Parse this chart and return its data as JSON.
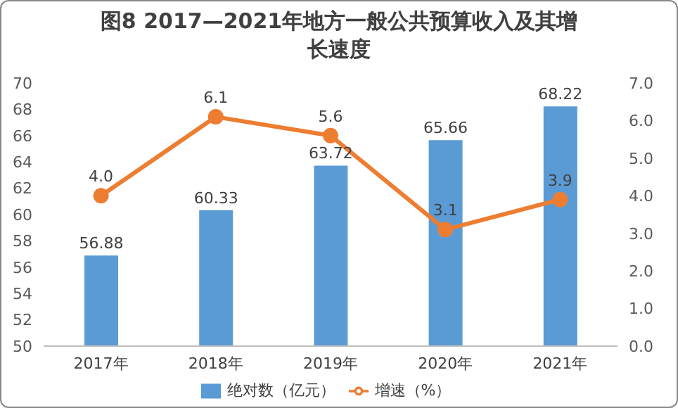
{
  "chart_data": {
    "type": "bar",
    "title": "图8 2017—2021年地方一般公共预算收入及其增长速度",
    "categories": [
      "2017年",
      "2018年",
      "2019年",
      "2020年",
      "2021年"
    ],
    "series": [
      {
        "name": "绝对数（亿元）",
        "color": "#5b9bd5",
        "values": [
          56.88,
          60.33,
          63.72,
          65.66,
          68.22
        ],
        "value_labels": [
          "56.88",
          "60.33",
          "63.72",
          "65.66",
          "68.22"
        ]
      },
      {
        "name": "增速（%）",
        "type": "line",
        "axis": "y2",
        "color": "#ed7d31",
        "values": [
          4.0,
          6.1,
          5.6,
          3.1,
          3.9
        ],
        "value_labels": [
          "4.0",
          "6.1",
          "5.6",
          "3.1",
          "3.9"
        ]
      }
    ],
    "ylim": [
      50,
      70
    ],
    "yticks": [
      50,
      52,
      54,
      56,
      58,
      60,
      62,
      64,
      66,
      68,
      70
    ],
    "y2lim": [
      0,
      7
    ],
    "y2ticks": [
      {
        "value": 0,
        "label": "0.0"
      },
      {
        "value": 1,
        "label": "1.0"
      },
      {
        "value": 2,
        "label": "2.0"
      },
      {
        "value": 3,
        "label": "3.0"
      },
      {
        "value": 4,
        "label": "4.0"
      },
      {
        "value": 5,
        "label": "5.0"
      },
      {
        "value": 6,
        "label": "6.0"
      },
      {
        "value": 7,
        "label": "7.0"
      }
    ],
    "grid": false,
    "legend": "bottom",
    "marker": "circle",
    "line_style": "solid"
  }
}
